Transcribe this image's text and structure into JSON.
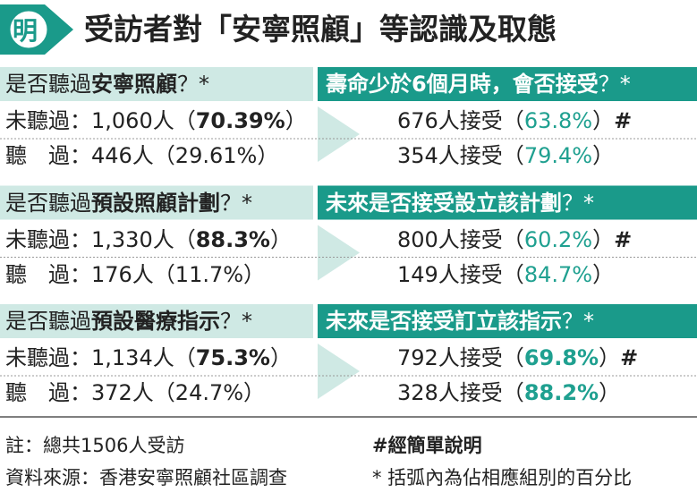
{
  "header": {
    "logo": "明",
    "title": "受訪者對「安寧照顧」等認識及取態"
  },
  "sections": [
    {
      "question": [
        {
          "text": "是否聽過"
        },
        {
          "text": "安寧照顧",
          "bold": true
        },
        {
          "text": "？*"
        }
      ],
      "followup": [
        {
          "text": "壽命少於6個月時，會否接受",
          "bold": true
        },
        {
          "text": "？*"
        }
      ],
      "rows": [
        {
          "left": [
            {
              "text": "未聽過："
            },
            {
              "text": "1,060人（"
            },
            {
              "text": "70.39%",
              "bold": true
            },
            {
              "text": "）"
            }
          ],
          "right": [
            {
              "text": "676人接受（"
            },
            {
              "text": "63.8%",
              "color": "#1fa090"
            },
            {
              "text": "）"
            },
            {
              "text": "#",
              "bold": true
            }
          ]
        },
        {
          "left": [
            {
              "text": "聽　過："
            },
            {
              "text": "446人（29.61%）"
            }
          ],
          "right": [
            {
              "text": "354人接受（"
            },
            {
              "text": "79.4%",
              "color": "#1fa090"
            },
            {
              "text": "）"
            }
          ]
        }
      ]
    },
    {
      "question": [
        {
          "text": "是否聽過"
        },
        {
          "text": "預設照顧計劃",
          "bold": true
        },
        {
          "text": "？*"
        }
      ],
      "followup": [
        {
          "text": "未來是否接受設立該計劃",
          "bold": true
        },
        {
          "text": "？*"
        }
      ],
      "rows": [
        {
          "left": [
            {
              "text": "未聽過："
            },
            {
              "text": "1,330人（"
            },
            {
              "text": "88.3%",
              "bold": true
            },
            {
              "text": "）"
            }
          ],
          "right": [
            {
              "text": "800人接受（"
            },
            {
              "text": "60.2%",
              "color": "#1fa090"
            },
            {
              "text": "）"
            },
            {
              "text": "#",
              "bold": true
            }
          ]
        },
        {
          "left": [
            {
              "text": "聽　過："
            },
            {
              "text": "176人（11.7%）"
            }
          ],
          "right": [
            {
              "text": "149人接受（"
            },
            {
              "text": "84.7%",
              "color": "#1fa090"
            },
            {
              "text": "）"
            }
          ]
        }
      ]
    },
    {
      "question": [
        {
          "text": "是否聽過"
        },
        {
          "text": "預設醫療指示",
          "bold": true
        },
        {
          "text": "？*"
        }
      ],
      "followup": [
        {
          "text": "未來是否接受訂立該指示",
          "bold": true
        },
        {
          "text": "？*"
        }
      ],
      "rows": [
        {
          "left": [
            {
              "text": "未聽過："
            },
            {
              "text": "1,134人（"
            },
            {
              "text": "75.3%",
              "bold": true
            },
            {
              "text": "）"
            }
          ],
          "right": [
            {
              "text": "792人接受（"
            },
            {
              "text": "69.8%",
              "color": "#1fa090",
              "bold": true
            },
            {
              "text": "）"
            },
            {
              "text": "#",
              "bold": true
            }
          ]
        },
        {
          "left": [
            {
              "text": "聽　過："
            },
            {
              "text": "372人（24.7%）"
            }
          ],
          "right": [
            {
              "text": "328人接受（"
            },
            {
              "text": "88.2%",
              "color": "#1fa090",
              "bold": true
            },
            {
              "text": "）"
            }
          ]
        }
      ]
    }
  ],
  "notes": {
    "total": "註：總共1506人受訪",
    "hash": "#經簡單說明",
    "source": "資料來源：香港安寧照顧社區調查",
    "asterisk": "* 括弧內為佔相應組別的百分比"
  }
}
